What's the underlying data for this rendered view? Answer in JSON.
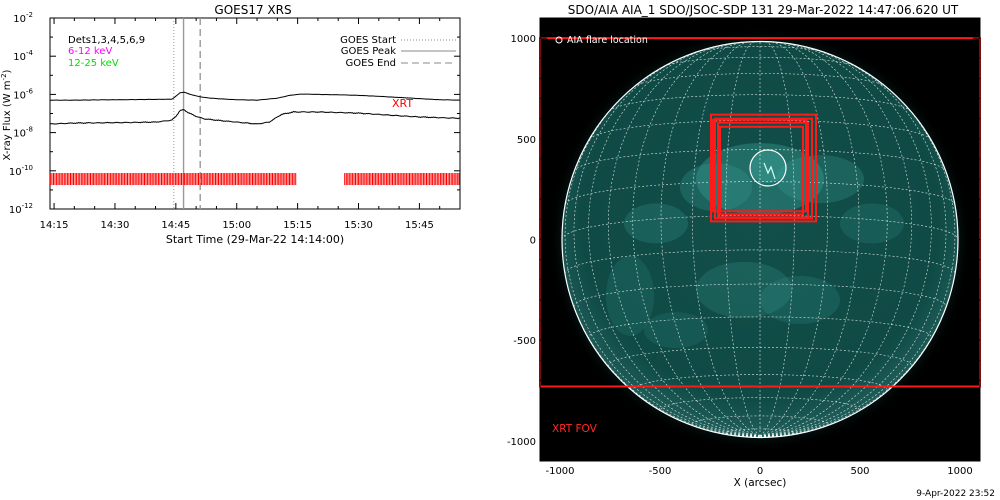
{
  "chart_data": [
    {
      "type": "line",
      "title": "GOES17 XRS",
      "xlabel": "Start Time (29-Mar-22 14:14:00)",
      "ylabel_main": "X-ray Flux (W m",
      "ylabel_sup": "-2",
      "ylabel_close": ")",
      "xlim_minutes": [
        14,
        115
      ],
      "x_ticks": [
        {
          "minutes": 15,
          "label": "14:15"
        },
        {
          "minutes": 30,
          "label": "14:30"
        },
        {
          "minutes": 45,
          "label": "14:45"
        },
        {
          "minutes": 60,
          "label": "15:00"
        },
        {
          "minutes": 75,
          "label": "15:15"
        },
        {
          "minutes": 90,
          "label": "15:30"
        },
        {
          "minutes": 105,
          "label": "15:45"
        }
      ],
      "y_scale": "log",
      "ylim_exp": [
        -12,
        -2
      ],
      "y_ticks": [
        {
          "exp": -2,
          "base": "10",
          "sup": "-2"
        },
        {
          "exp": -4,
          "base": "10",
          "sup": "-4"
        },
        {
          "exp": -6,
          "base": "10",
          "sup": "-6"
        },
        {
          "exp": -8,
          "base": "10",
          "sup": "-8"
        },
        {
          "exp": -10,
          "base": "10",
          "sup": "-10"
        },
        {
          "exp": -12,
          "base": "10",
          "sup": "-12"
        }
      ],
      "dets_label": "Dets1,3,4,5,6,9",
      "band_labels": [
        {
          "text": "6-12 keV",
          "color": "#ff00ff"
        },
        {
          "text": "12-25 keV",
          "color": "#00dd00"
        }
      ],
      "legend": [
        {
          "label": "GOES Start",
          "style": "dotted"
        },
        {
          "label": "GOES Peak",
          "style": "solid"
        },
        {
          "label": "GOES End",
          "style": "dashed"
        }
      ],
      "xrt_label": "XRT",
      "event_times_minutes": {
        "start": 44.5,
        "peak": 46.9,
        "end": 51.0
      },
      "series": [
        {
          "x_minutes": [
            14,
            20,
            30,
            40,
            44,
            45,
            46,
            47,
            48,
            50,
            52,
            55,
            60,
            65,
            70,
            73,
            76,
            80,
            85,
            90,
            95,
            100,
            105,
            110,
            115
          ],
          "log10_flux": [
            -6.3,
            -6.3,
            -6.28,
            -6.26,
            -6.25,
            -6.1,
            -5.92,
            -5.88,
            -5.96,
            -6.08,
            -6.16,
            -6.22,
            -6.28,
            -6.3,
            -6.2,
            -6.05,
            -5.98,
            -6.0,
            -6.02,
            -6.05,
            -6.1,
            -6.16,
            -6.22,
            -6.28,
            -6.3
          ]
        },
        {
          "x_minutes": [
            14,
            20,
            30,
            40,
            44,
            45,
            46,
            47,
            48,
            50,
            52,
            55,
            60,
            65,
            68,
            71,
            74,
            80,
            85,
            90,
            95,
            100,
            105,
            110,
            115
          ],
          "log10_flux": [
            -7.55,
            -7.5,
            -7.48,
            -7.45,
            -7.35,
            -7.15,
            -6.85,
            -6.8,
            -6.95,
            -7.15,
            -7.28,
            -7.35,
            -7.45,
            -7.55,
            -7.45,
            -7.05,
            -6.92,
            -6.92,
            -6.95,
            -6.98,
            -7.05,
            -7.12,
            -7.18,
            -7.22,
            -7.25
          ]
        }
      ],
      "xrt_coverage_minutes": [
        [
          14,
          74.7
        ],
        [
          86.5,
          115
        ]
      ],
      "colors": {
        "xrt": "#ff0000"
      }
    },
    {
      "type": "image",
      "title": "SDO/AIA AIA_1 SDO/JSOC-SDP 131 29-Mar-2022 14:47:06.620 UT",
      "xlabel": "X (arcsec)",
      "xlim": [
        -1100,
        1100
      ],
      "ylim": [
        -1100,
        1100
      ],
      "x_ticks": [
        -1000,
        -500,
        0,
        500,
        1000
      ],
      "y_ticks": [
        -1000,
        -500,
        0,
        500,
        1000
      ],
      "flare_legend": "AIA flare location",
      "xrt_fov_label": "XRT FOV",
      "solar_radius_arcsec": 990,
      "flare_location_arcsec": [
        40,
        355
      ],
      "xrt_fov_large_arcsec": [
        -1100,
        1100,
        -730,
        1000
      ],
      "xrt_boxes_arcsec": [
        [
          -245,
          280,
          90,
          620
        ],
        [
          -225,
          260,
          105,
          600
        ],
        [
          -210,
          240,
          110,
          580
        ],
        [
          -200,
          215,
          125,
          560
        ],
        [
          -235,
          230,
          140,
          595
        ]
      ],
      "colors": {
        "disk": "#0e4a46",
        "xrt": "#ff1a1a",
        "grid": "#ffffff"
      }
    }
  ],
  "footer": {
    "timestamp": "9-Apr-2022 23:52"
  }
}
